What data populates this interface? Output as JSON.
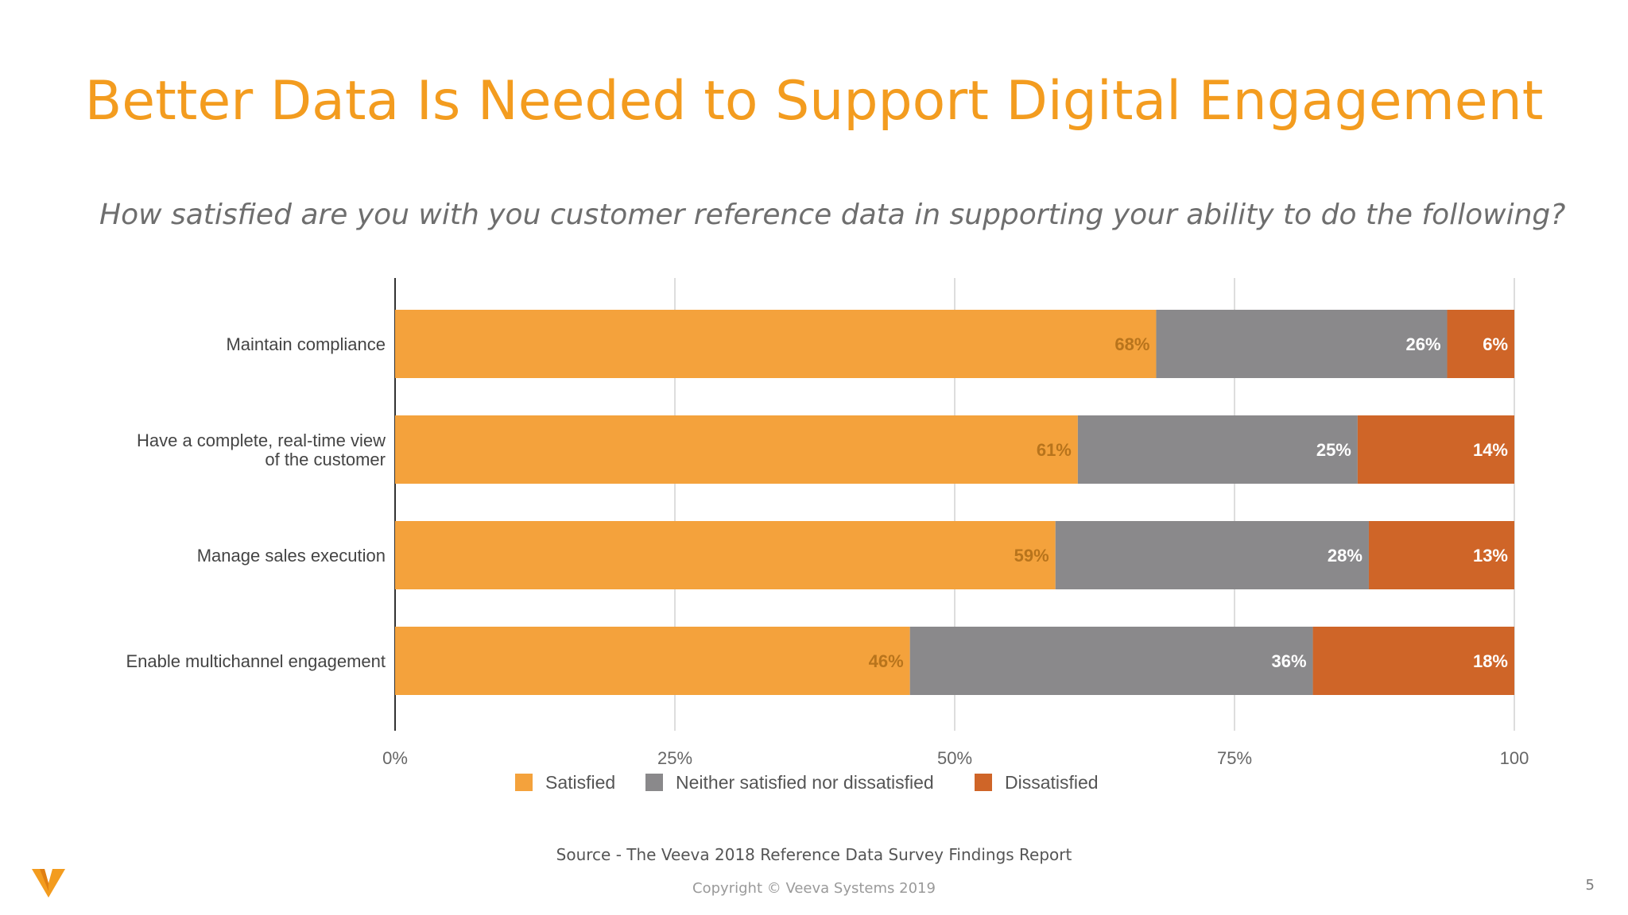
{
  "slide": {
    "title": "Better Data Is Needed to Support Digital Engagement",
    "subtitle": "How satisfied are you with you customer reference data in supporting your ability to do the following?",
    "source": "Source - The Veeva 2018 Reference Data Survey Findings Report",
    "copyright": "Copyright © Veeva Systems 2019",
    "page_number": "5",
    "logo_icon": "veeva-v-logo-icon"
  },
  "chart_data": {
    "type": "bar",
    "orientation": "horizontal",
    "stacked": true,
    "categories": [
      [
        "Maintain compliance"
      ],
      [
        "Have a complete, real-time view",
        "of the customer"
      ],
      [
        "Manage sales execution"
      ],
      [
        "Enable multichannel engagement"
      ]
    ],
    "series": [
      {
        "name": "Satisfied",
        "values": [
          68,
          61,
          59,
          46
        ],
        "labels": [
          "68%",
          "61%",
          "59%",
          "46%"
        ],
        "color": "#f4a23c",
        "label_color": "#b8741c"
      },
      {
        "name": "Neither satisfied nor dissatisfied",
        "values": [
          26,
          25,
          28,
          36
        ],
        "labels": [
          "26%",
          "25%",
          "28%",
          "36%"
        ],
        "color": "#8a898b",
        "label_color": "#ffffff"
      },
      {
        "name": "Dissatisfied",
        "values": [
          6,
          14,
          13,
          18
        ],
        "labels": [
          "6%",
          "14%",
          "13%",
          "18%"
        ],
        "color": "#cf6528",
        "label_color": "#ffffff"
      }
    ],
    "x_ticks": [
      "0%",
      "25%",
      "50%",
      "75%",
      "100"
    ],
    "xlim": [
      0,
      100
    ],
    "grid": true,
    "legend_position": "bottom"
  }
}
